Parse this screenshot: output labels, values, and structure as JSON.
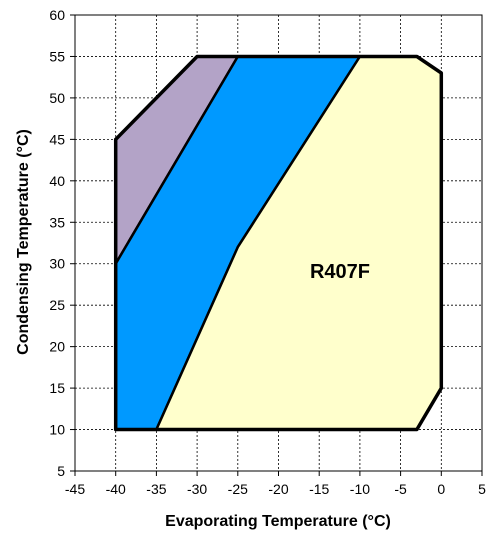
{
  "chart_data": {
    "type": "area",
    "title": "",
    "xlabel": "Evaporating Temperature (°C)",
    "ylabel": "Condensing Temperature (°C)",
    "xlim": [
      -45,
      5
    ],
    "ylim": [
      5,
      60
    ],
    "x_ticks": [
      "-45",
      "-40",
      "-35",
      "-30",
      "-25",
      "-20",
      "-15",
      "-10",
      "-5",
      "0",
      "5"
    ],
    "y_ticks": [
      "5",
      "10",
      "15",
      "20",
      "25",
      "30",
      "35",
      "40",
      "45",
      "50",
      "55",
      "60"
    ],
    "grid": true,
    "annotation": "R407F",
    "series": [
      {
        "color": "#b3a3c7",
        "points": [
          [
            -40,
            45
          ],
          [
            -30,
            55
          ],
          [
            -25,
            55
          ],
          [
            -40,
            30
          ]
        ]
      },
      {
        "color": "#0099ff",
        "points": [
          [
            -40,
            30
          ],
          [
            -25,
            55
          ],
          [
            -10,
            55
          ],
          [
            -25,
            32
          ],
          [
            -35,
            10
          ],
          [
            -40,
            10
          ]
        ]
      },
      {
        "color": "#ffffcc",
        "points": [
          [
            -35,
            10
          ],
          [
            -25,
            32
          ],
          [
            -10,
            55
          ],
          [
            -3,
            55
          ],
          [
            0,
            53
          ],
          [
            0,
            15
          ],
          [
            -3,
            10
          ]
        ]
      }
    ],
    "envelope": [
      [
        -40,
        10
      ],
      [
        -40,
        45
      ],
      [
        -30,
        55
      ],
      [
        -3,
        55
      ],
      [
        0,
        53
      ],
      [
        0,
        15
      ],
      [
        -3,
        10
      ]
    ]
  }
}
